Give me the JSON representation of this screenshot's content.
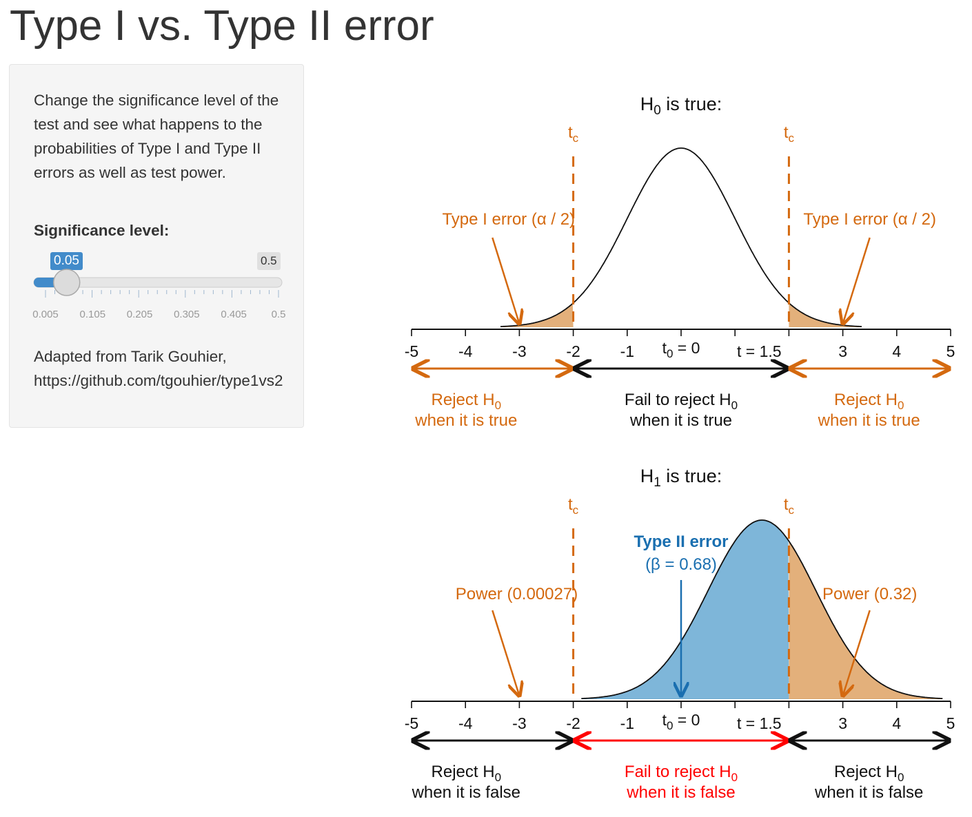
{
  "page": {
    "title": "Type I vs. Type II error"
  },
  "sidebar": {
    "description": "Change the significance level of the test and see what happens to the probabilities of Type I and Type II errors as well as test power.",
    "slider": {
      "label": "Significance level:",
      "value": 0.05,
      "value_label": "0.05",
      "max_label": "0.5",
      "min": 0.005,
      "max": 0.5,
      "tick_labels": [
        "0.005",
        "0.105",
        "0.205",
        "0.305",
        "0.405",
        "0.5"
      ]
    },
    "credit_line1": "Adapted from Tarik Gouhier,",
    "credit_line2": "https://github.com/tgouhier/type1vs2"
  },
  "colors": {
    "orange": "#d4690f",
    "fill_orange": "#e3b07b",
    "fill_blue": "#7eb6d9",
    "blue": "#1a6fb0",
    "red": "#ff0000",
    "slider_blue": "#428bca"
  },
  "chart_data": [
    {
      "type": "line",
      "title_main": "H",
      "title_sub": "0",
      "title_rest": " is true:",
      "xlim": [
        -5,
        5
      ],
      "xticks": [
        "-5",
        "-4",
        "-3",
        "-2",
        "-1",
        "3",
        "4",
        "5"
      ],
      "xtick_values": [
        -5,
        -4,
        -3,
        -2,
        -1,
        3,
        4,
        5
      ],
      "t0_label_main": "t",
      "t0_label_sub": "0",
      "t0_label_rest": " = 0",
      "t0_value": 0,
      "t_label": "t = 1.5",
      "t_value": 1.5,
      "critical_values": [
        -2,
        2
      ],
      "critical_label_main": "t",
      "critical_label_sub": "c",
      "curve_mean": 0,
      "curve_sd": 1,
      "annotations": [
        "Type I error (α / 2)",
        "Type I error (α / 2)"
      ],
      "regions": [
        {
          "line1_main": "Reject H",
          "line1_sub": "0",
          "line2": "when it is true",
          "color": "#d4690f"
        },
        {
          "line1_main": "Fail to reject H",
          "line1_sub": "0",
          "line2": "when it is true",
          "color": "#111111"
        },
        {
          "line1_main": "Reject H",
          "line1_sub": "0",
          "line2": "when it is true",
          "color": "#d4690f"
        }
      ]
    },
    {
      "type": "area",
      "title_main": "H",
      "title_sub": "1",
      "title_rest": " is true:",
      "xlim": [
        -5,
        5
      ],
      "xticks": [
        "-5",
        "-4",
        "-3",
        "-2",
        "-1",
        "3",
        "4",
        "5"
      ],
      "xtick_values": [
        -5,
        -4,
        -3,
        -2,
        -1,
        3,
        4,
        5
      ],
      "t0_label_main": "t",
      "t0_label_sub": "0",
      "t0_label_rest": " = 0",
      "t0_value": 0,
      "t_label": "t = 1.5",
      "t_value": 1.5,
      "critical_values": [
        -2,
        2
      ],
      "critical_label_main": "t",
      "critical_label_sub": "c",
      "curve_mean": 1.5,
      "curve_sd": 1,
      "type2_title": "Type II error",
      "type2_beta": "(β = 0.68)",
      "beta": 0.68,
      "power_left": "Power (0.00027)",
      "power_right": "Power (0.32)",
      "regions": [
        {
          "line1_main": "Reject H",
          "line1_sub": "0",
          "line2": "when it is false",
          "color": "#111111"
        },
        {
          "line1_main": "Fail to reject H",
          "line1_sub": "0",
          "line2": "when it is false",
          "color": "#ff0000"
        },
        {
          "line1_main": "Reject H",
          "line1_sub": "0",
          "line2": "when it is false",
          "color": "#111111"
        }
      ]
    }
  ]
}
